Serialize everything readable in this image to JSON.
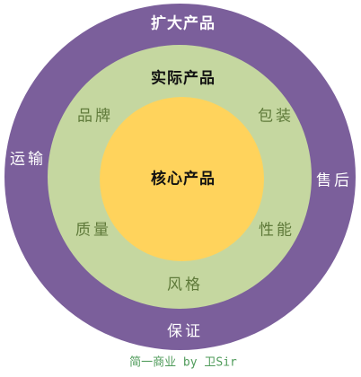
{
  "colors": {
    "outer_ring": "#7b5f9b",
    "middle_ring": "#c5d7a0",
    "core": "#ffd35c",
    "outer_text": "#ffffff",
    "middle_text": "#5f7a3a",
    "title_text": "#111111",
    "watermark_text": "#4f9b5a"
  },
  "outer_ring": {
    "title": "扩大产品",
    "items": [
      "运输",
      "售后",
      "保证"
    ]
  },
  "middle_ring": {
    "title": "实际产品",
    "items": [
      "品牌",
      "包装",
      "质量",
      "性能",
      "风格"
    ]
  },
  "core": {
    "title": "核心产品"
  },
  "watermark": "简一商业 by 卫Sir"
}
